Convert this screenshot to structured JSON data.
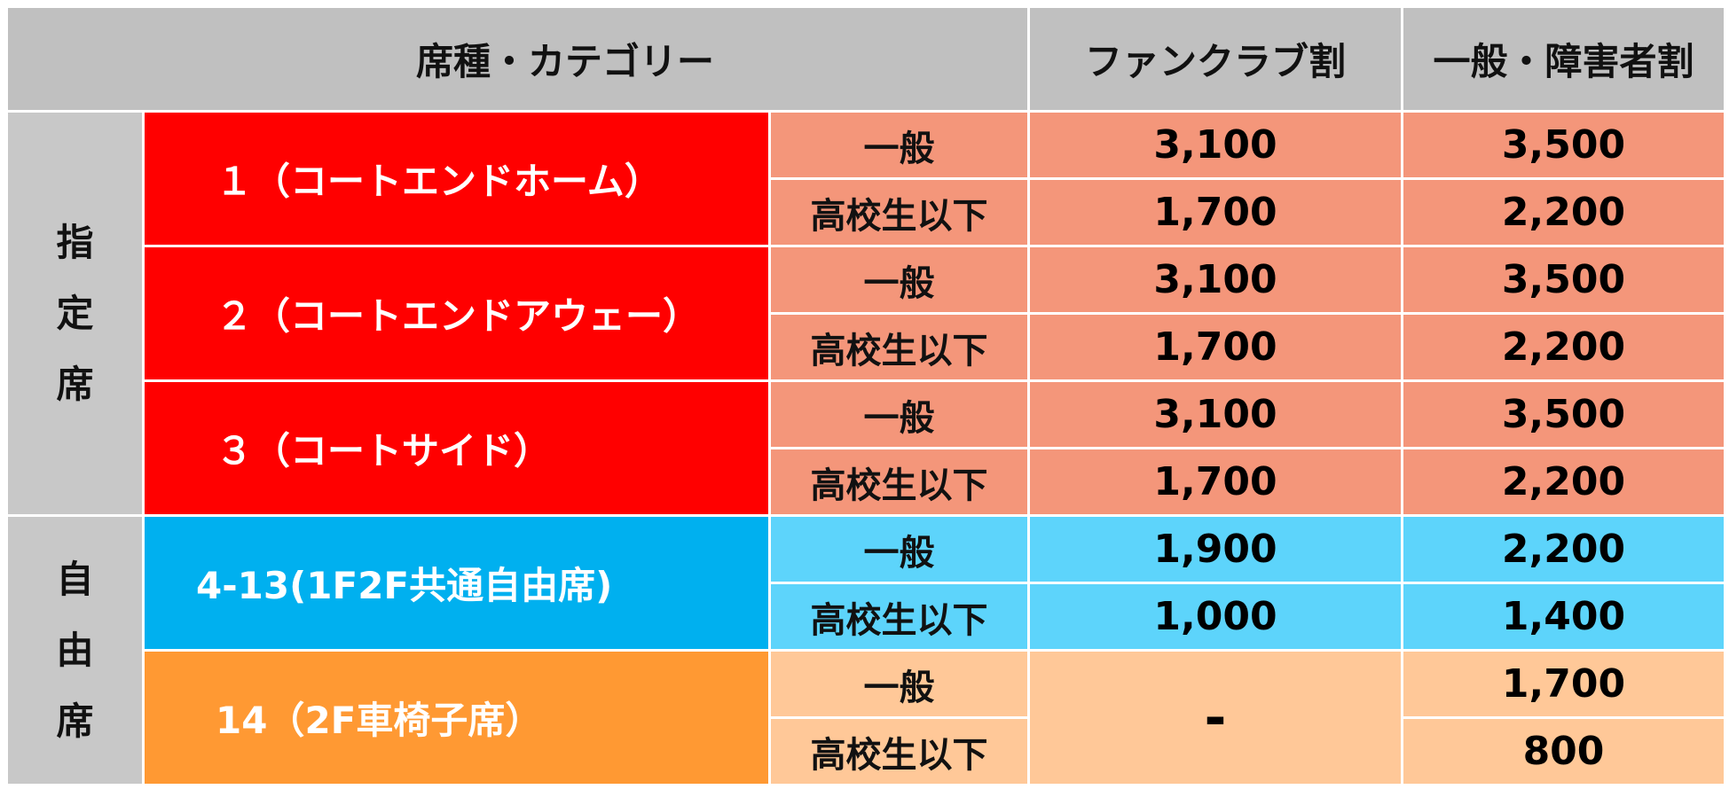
{
  "header": {
    "category": "席種・カテゴリー",
    "fanclub": "ファンクラブ割",
    "general": "一般・障害者割"
  },
  "groups": {
    "reserved": [
      "指",
      "定",
      "席"
    ],
    "free": [
      "自",
      "由",
      "席"
    ]
  },
  "categories": [
    {
      "label": "１（コートエンドホーム）"
    },
    {
      "label": "２（コートエンドアウェー）"
    },
    {
      "label": "３（コートサイド）"
    },
    {
      "label": "4-13(1F2F共通自由席)"
    },
    {
      "label": "14（2F車椅子席）"
    }
  ],
  "rows": [
    {
      "sub": "一般",
      "fanclub": "3,100",
      "general": "3,500"
    },
    {
      "sub": "高校生以下",
      "fanclub": "1,700",
      "general": "2,200"
    },
    {
      "sub": "一般",
      "fanclub": "3,100",
      "general": "3,500"
    },
    {
      "sub": "高校生以下",
      "fanclub": "1,700",
      "general": "2,200"
    },
    {
      "sub": "一般",
      "fanclub": "3,100",
      "general": "3,500"
    },
    {
      "sub": "高校生以下",
      "fanclub": "1,700",
      "general": "2,200"
    },
    {
      "sub": "一般",
      "fanclub": "1,900",
      "general": "2,200"
    },
    {
      "sub": "高校生以下",
      "fanclub": "1,000",
      "general": "1,400"
    },
    {
      "sub": "一般",
      "fanclub": "-",
      "general": "1,700"
    },
    {
      "sub": "高校生以下",
      "fanclub": "",
      "general": "800"
    }
  ],
  "colors": {
    "header_bg": "#c0c0c0",
    "reserved_category": "#ff0000",
    "reserved_price": "#f4967a",
    "free_category": "#00b0ef",
    "free_price": "#5dd4fb",
    "wheelchair_category": "#ff9933",
    "wheelchair_price": "#ffc898"
  }
}
